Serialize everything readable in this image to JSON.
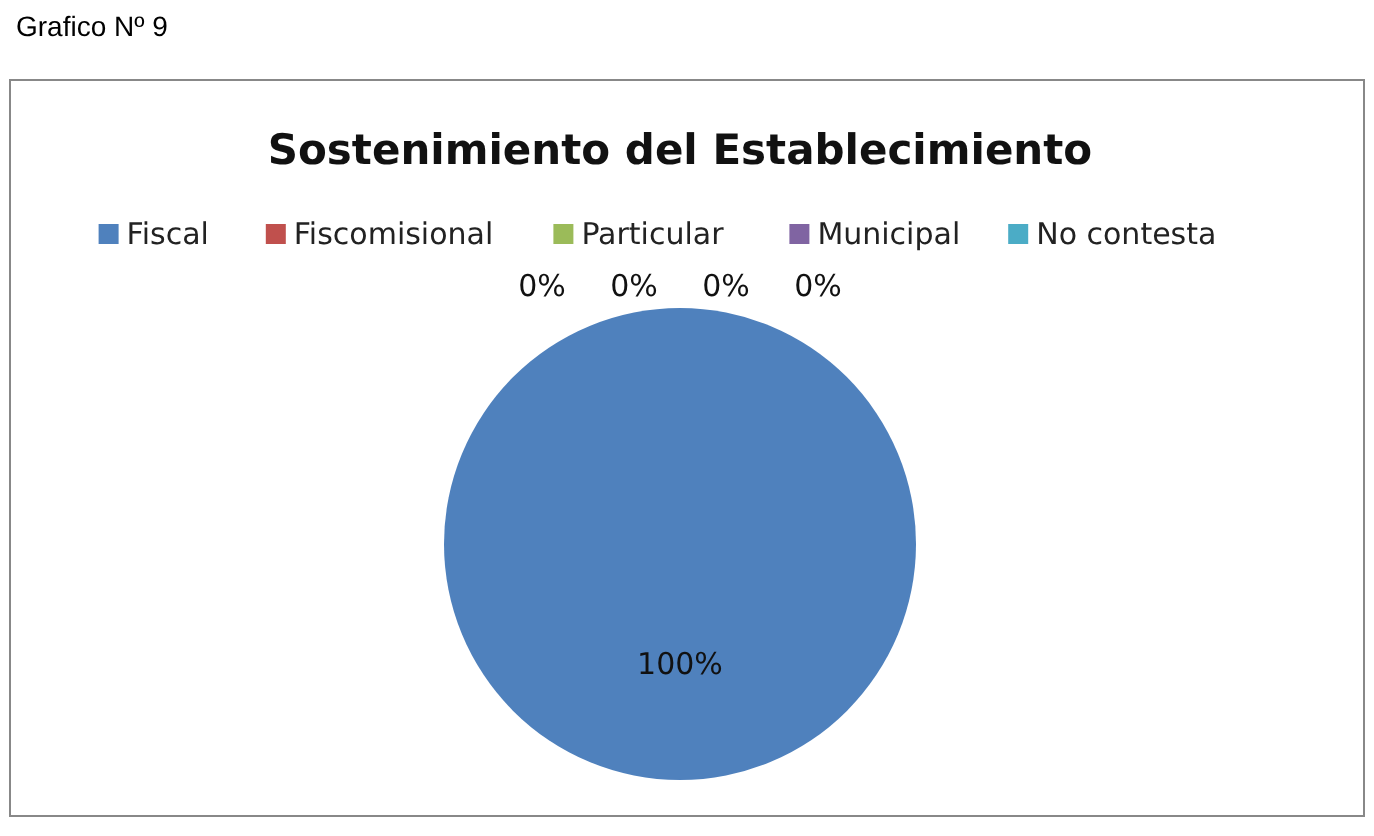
{
  "chart_data": {
    "type": "pie",
    "title": "Sostenimiento del Establecimiento",
    "categories": [
      "Fiscal",
      "Fiscomisional",
      "Particular",
      "Municipal",
      "No contesta"
    ],
    "values": [
      100,
      0,
      0,
      0,
      0
    ],
    "colors": [
      "#4f81bd",
      "#c0504d",
      "#9bbb59",
      "#8064a2",
      "#4bacc6"
    ],
    "value_labels": [
      "100%",
      "0%",
      "0%",
      "0%",
      "0%"
    ],
    "legend": "top",
    "annotations": [
      "Grafico Nº 9"
    ]
  }
}
